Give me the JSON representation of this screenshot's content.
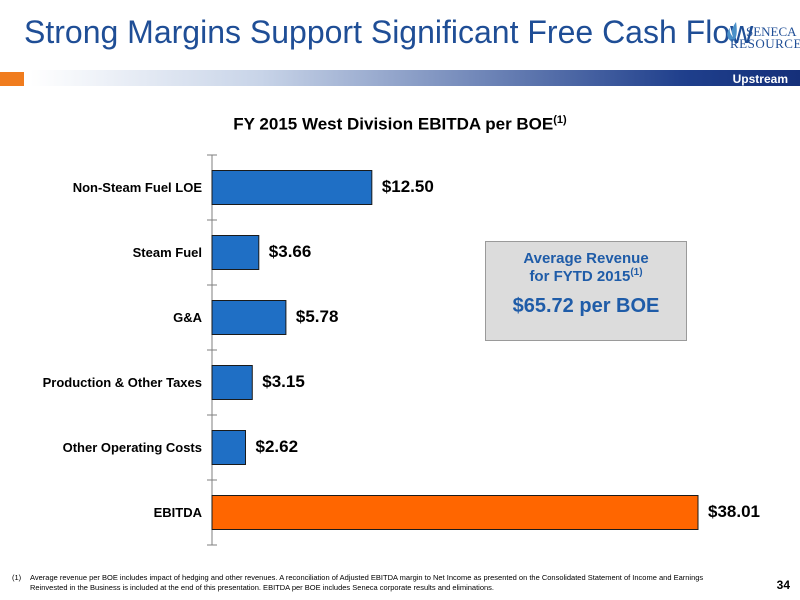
{
  "slide": {
    "title": "Strong Margins Support Significant Free Cash Flow",
    "tag": "Upstream",
    "logo_line1": "SENECA",
    "logo_line2": "RESOURCES",
    "page_number": "34",
    "footnote_mark": "(1)",
    "footnote": "Average revenue per BOE includes impact of hedging and other revenues. A reconciliation of Adjusted EBITDA margin to Net Income as presented on the Consolidated Statement of Income and Earnings Reinvested in the Business is included at the end of this presentation. EBITDA per BOE includes Seneca corporate results and eliminations."
  },
  "callout": {
    "line1": "Average Revenue",
    "line2": "for FYTD 2015",
    "line2_sup": "(1)",
    "value": "$65.72 per BOE"
  },
  "chart_data": {
    "type": "bar",
    "orientation": "horizontal",
    "title": "FY 2015 West Division EBITDA per BOE",
    "title_sup": "(1)",
    "categories": [
      "Non-Steam Fuel LOE",
      "Steam Fuel",
      "G&A",
      "Production & Other Taxes",
      "Other Operating Costs",
      "EBITDA"
    ],
    "values": [
      12.5,
      3.66,
      5.78,
      3.15,
      2.62,
      38.01
    ],
    "value_labels": [
      "$12.50",
      "$3.66",
      "$5.78",
      "$3.15",
      "$2.62",
      "$38.01"
    ],
    "bar_colors": [
      "#1f6fc5",
      "#1f6fc5",
      "#1f6fc5",
      "#1f6fc5",
      "#1f6fc5",
      "#ff6600"
    ],
    "xlim": [
      0,
      38.01
    ],
    "grid": false,
    "legend": "none"
  }
}
